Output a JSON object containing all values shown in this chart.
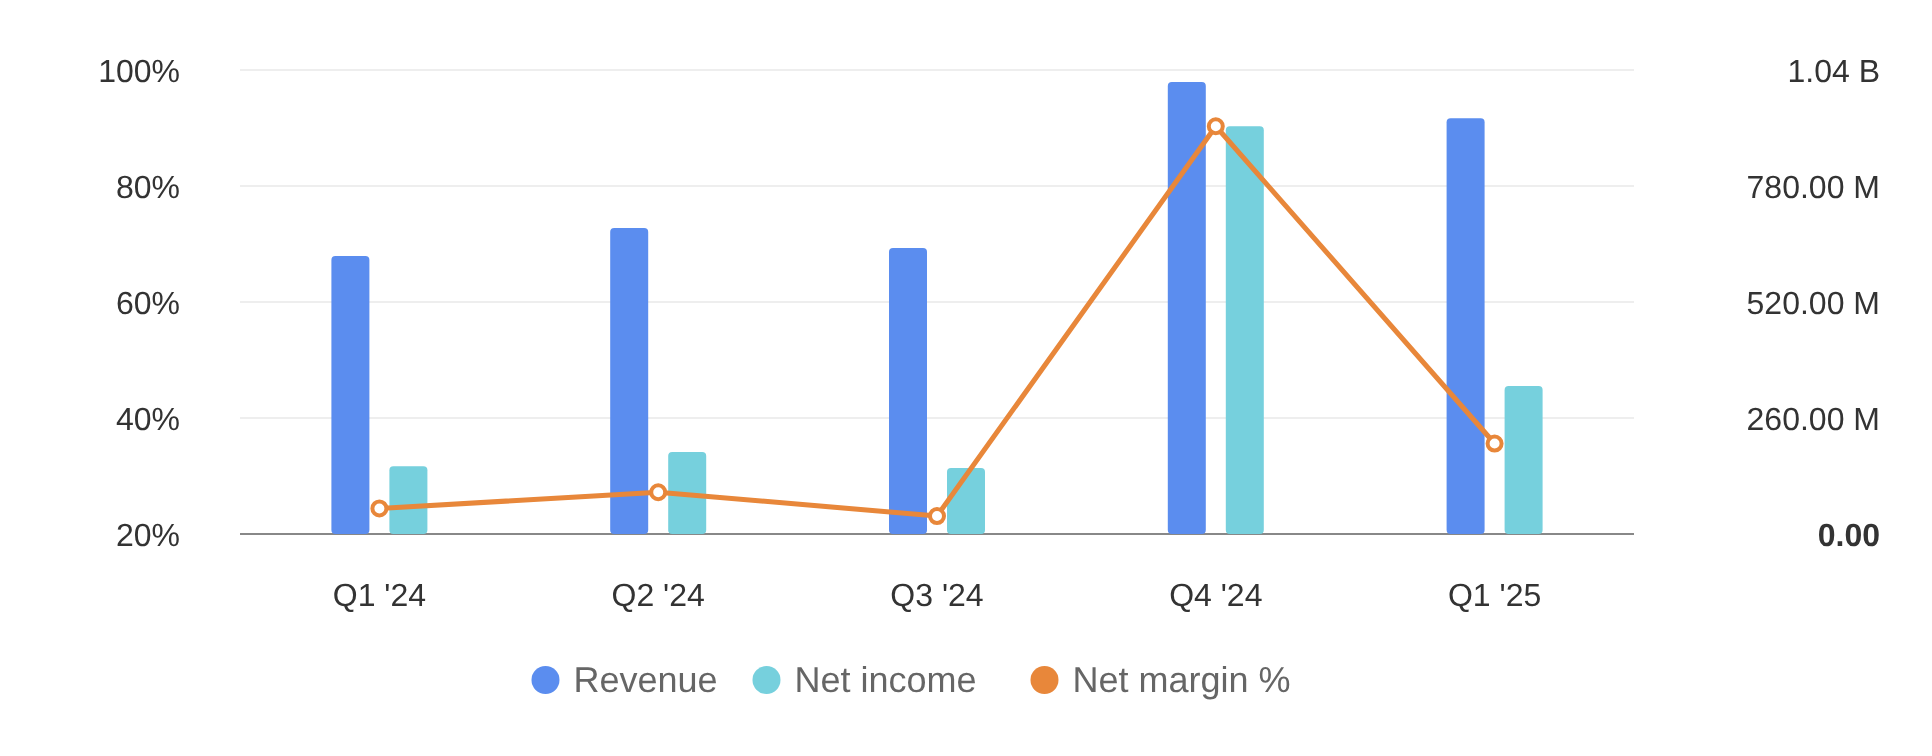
{
  "chart_data": {
    "type": "bar",
    "categories": [
      "Q1 '24",
      "Q2 '24",
      "Q3 '24",
      "Q4 '24",
      "Q1 '25"
    ],
    "series": [
      {
        "name": "Revenue",
        "color": "#5b8def",
        "axis": "y2",
        "values": [
          623000000,
          686000000,
          641000000,
          1013000000,
          932000000
        ]
      },
      {
        "name": "Net income",
        "color": "#76d0dd",
        "axis": "y2",
        "values": [
          152000000,
          184000000,
          148000000,
          914000000,
          332000000
        ]
      },
      {
        "name": "Net margin %",
        "type": "line",
        "color": "#e8873a",
        "values": [
          24.4,
          27.2,
          23.1,
          90.3,
          35.6
        ]
      }
    ],
    "ylim": [
      20,
      100
    ],
    "yticks": [
      {
        "value": 20,
        "label": "20%"
      },
      {
        "value": 40,
        "label": "40%"
      },
      {
        "value": 60,
        "label": "60%"
      },
      {
        "value": 80,
        "label": "80%"
      },
      {
        "value": 100,
        "label": "100%"
      }
    ],
    "y2lim": [
      0,
      1040000000
    ],
    "y2ticks": [
      {
        "value": 0,
        "label": "0.00"
      },
      {
        "value": 260000000,
        "label": "260.00 M"
      },
      {
        "value": 520000000,
        "label": "520.00 M"
      },
      {
        "value": 780000000,
        "label": "780.00 M"
      },
      {
        "value": 1040000000,
        "label": "1.04 B"
      }
    ],
    "grid": "y",
    "legend": "bottom",
    "marker": "circle"
  }
}
